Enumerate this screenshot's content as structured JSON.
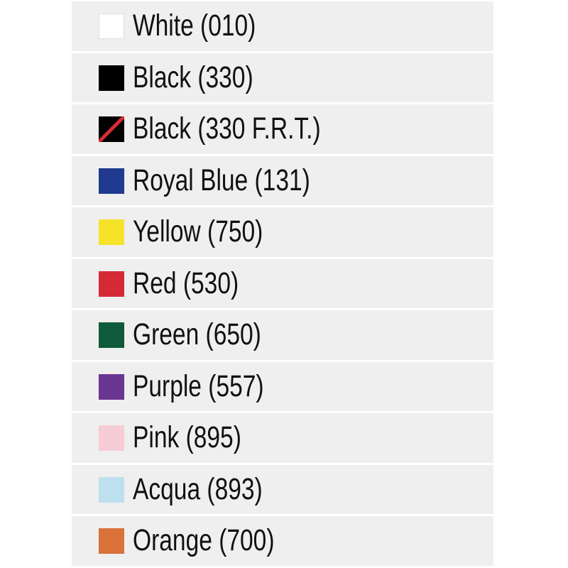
{
  "colors": [
    {
      "label": "White (010)",
      "swatch": "#ffffff",
      "border": "#dddddd"
    },
    {
      "label": "Black (330)",
      "swatch": "#000000"
    },
    {
      "label": "Black (330 F.R.T.)",
      "swatch": "#000000",
      "stripe": "#d42a35"
    },
    {
      "label": "Royal Blue (131)",
      "swatch": "#1f3a8f"
    },
    {
      "label": "Yellow (750)",
      "swatch": "#f7e22a"
    },
    {
      "label": "Red (530)",
      "swatch": "#d42a35"
    },
    {
      "label": "Green (650)",
      "swatch": "#0f5a3a"
    },
    {
      "label": "Purple (557)",
      "swatch": "#6b3592"
    },
    {
      "label": "Pink (895)",
      "swatch": "#f6ccd6"
    },
    {
      "label": "Acqua (893)",
      "swatch": "#bde0ee"
    },
    {
      "label": "Orange (700)",
      "swatch": "#d9733a"
    }
  ]
}
